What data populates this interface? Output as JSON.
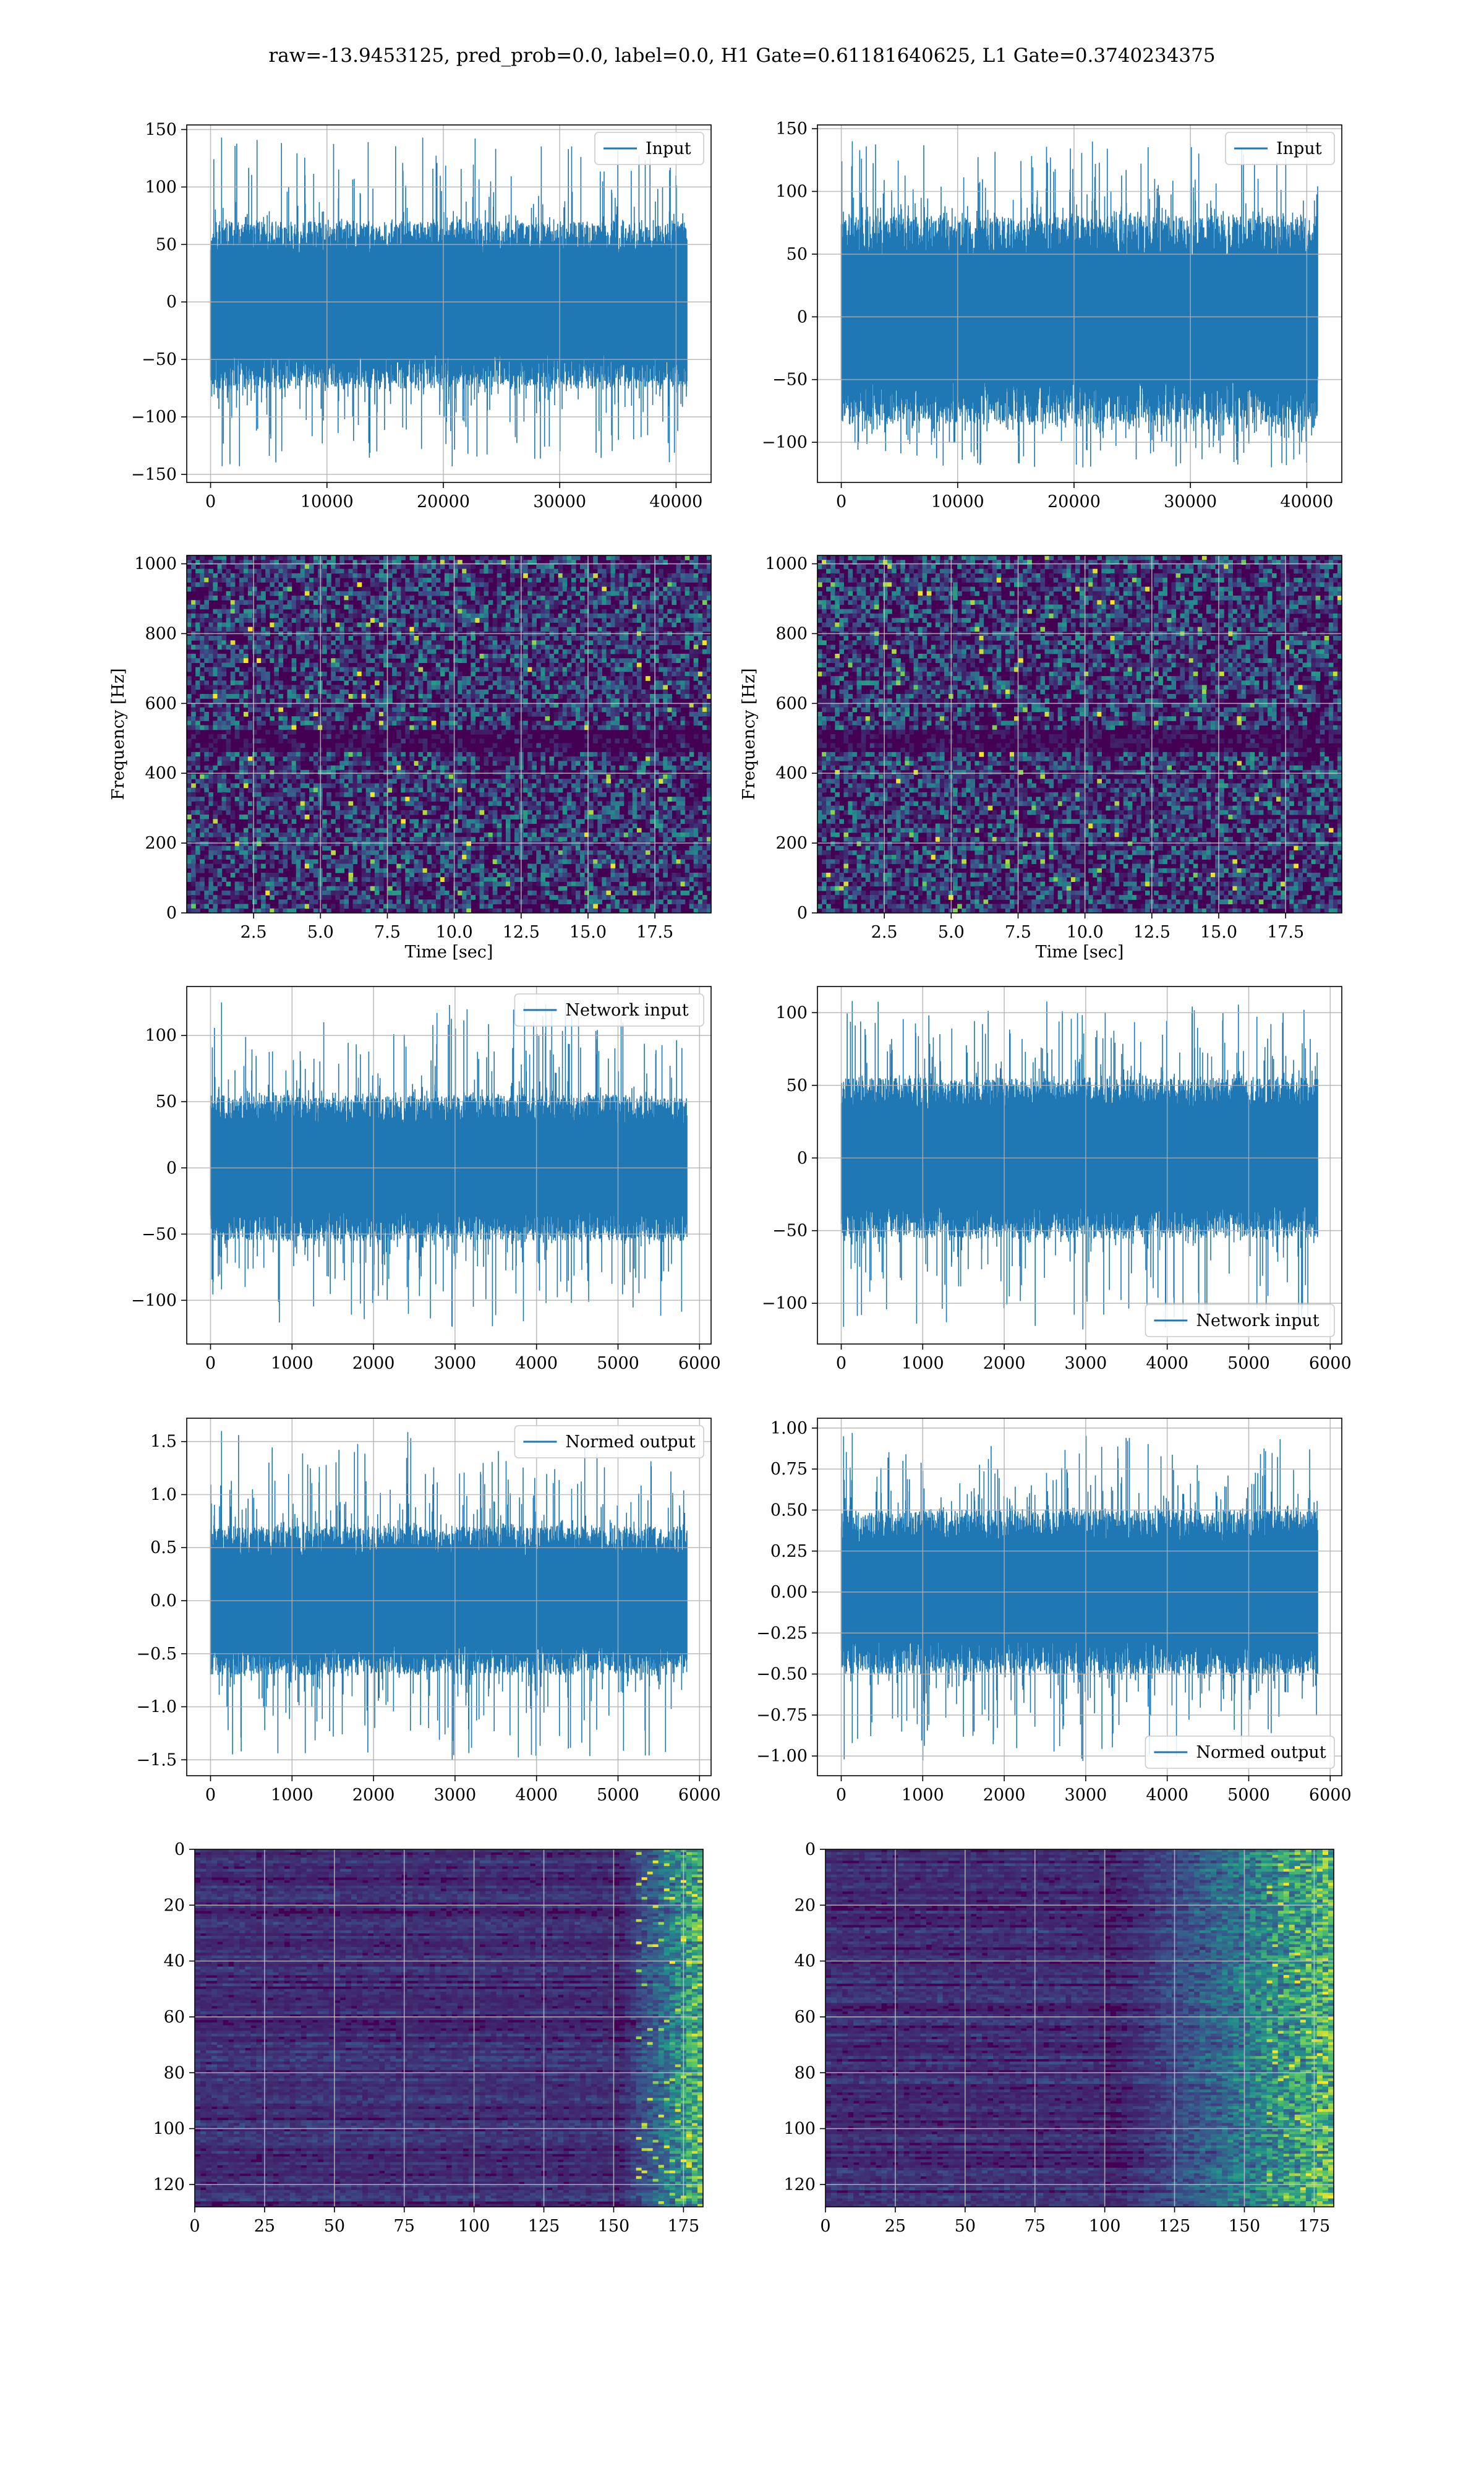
{
  "suptitle": "raw=-13.9453125, pred_prob=0.0, label=0.0, H1 Gate=0.61181640625, L1 Gate=0.3740234375",
  "colors": {
    "line": "#1f77b4",
    "grid": "#b0b0b0",
    "viridis_dark": "#440154",
    "viridis_bright": "#fde725"
  },
  "chart_data": [
    {
      "id": "input-h1",
      "type": "line",
      "series": [
        {
          "name": "Input",
          "n_points": 40960,
          "amplitude_typical": [
            -75,
            70
          ],
          "amplitude_extremes": [
            -143,
            143
          ]
        }
      ],
      "xlim": [
        -2048,
        43008
      ],
      "ylim": [
        -157,
        154
      ],
      "xticks": [
        0,
        10000,
        20000,
        30000,
        40000
      ],
      "yticks": [
        -150,
        -100,
        -50,
        0,
        50,
        100,
        150
      ],
      "grid": true,
      "legend": "upper right"
    },
    {
      "id": "input-l1",
      "type": "line",
      "series": [
        {
          "name": "Input",
          "n_points": 40960,
          "amplitude_typical": [
            -85,
            80
          ],
          "amplitude_extremes": [
            -120,
            140
          ]
        }
      ],
      "xlim": [
        -2048,
        43008
      ],
      "ylim": [
        -132,
        153
      ],
      "xticks": [
        0,
        10000,
        20000,
        30000,
        40000
      ],
      "yticks": [
        -100,
        -50,
        0,
        50,
        100,
        150
      ],
      "grid": true,
      "legend": "upper right"
    },
    {
      "id": "spectrogram-h1",
      "type": "heatmap",
      "colormap": "viridis",
      "xlim": [
        0,
        19.6
      ],
      "ylim": [
        0,
        1024
      ],
      "xticks": [
        2.5,
        5.0,
        7.5,
        10.0,
        12.5,
        15.0,
        17.5
      ],
      "yticks": [
        0,
        200,
        400,
        600,
        800,
        1000
      ],
      "xlabel": "Time [sec]",
      "ylabel": "Frequency [Hz]",
      "grid": true,
      "features": {
        "dark_band_hz": [
          460,
          520
        ]
      }
    },
    {
      "id": "spectrogram-l1",
      "type": "heatmap",
      "colormap": "viridis",
      "xlim": [
        0,
        19.6
      ],
      "ylim": [
        0,
        1024
      ],
      "xticks": [
        2.5,
        5.0,
        7.5,
        10.0,
        12.5,
        15.0,
        17.5
      ],
      "yticks": [
        0,
        200,
        400,
        600,
        800,
        1000
      ],
      "xlabel": "Time [sec]",
      "ylabel": "Frequency [Hz]",
      "grid": true,
      "features": {
        "dark_band_hz": [
          465,
          520
        ]
      }
    },
    {
      "id": "network-input-h1",
      "type": "line",
      "series": [
        {
          "name": "Network input",
          "n_points": 5850,
          "amplitude_typical": [
            -55,
            55
          ],
          "amplitude_extremes": [
            -120,
            125
          ]
        }
      ],
      "xlim": [
        -292,
        6142
      ],
      "ylim": [
        -133,
        137
      ],
      "xticks": [
        0,
        1000,
        2000,
        3000,
        4000,
        5000,
        6000
      ],
      "yticks": [
        -100,
        -50,
        0,
        50,
        100
      ],
      "grid": true,
      "legend": "upper right"
    },
    {
      "id": "network-input-l1",
      "type": "line",
      "series": [
        {
          "name": "Network input",
          "n_points": 5850,
          "amplitude_typical": [
            -55,
            55
          ],
          "amplitude_extremes": [
            -118,
            108
          ]
        }
      ],
      "xlim": [
        -292,
        6142
      ],
      "ylim": [
        -128,
        118
      ],
      "xticks": [
        0,
        1000,
        2000,
        3000,
        4000,
        5000,
        6000
      ],
      "yticks": [
        -100,
        -50,
        0,
        50,
        100
      ],
      "grid": true,
      "legend": "lower right"
    },
    {
      "id": "normed-output-h1",
      "type": "line",
      "series": [
        {
          "name": "Normed output",
          "n_points": 5850,
          "amplitude_typical": [
            -0.7,
            0.7
          ],
          "amplitude_extremes": [
            -1.5,
            1.6
          ]
        }
      ],
      "xlim": [
        -292,
        6142
      ],
      "ylim": [
        -1.65,
        1.72
      ],
      "xticks": [
        0,
        1000,
        2000,
        3000,
        4000,
        5000,
        6000
      ],
      "yticks": [
        -1.5,
        -1.0,
        -0.5,
        0.0,
        0.5,
        1.0,
        1.5
      ],
      "grid": true,
      "legend": "upper right"
    },
    {
      "id": "normed-output-l1",
      "type": "line",
      "series": [
        {
          "name": "Normed output",
          "n_points": 5850,
          "amplitude_typical": [
            -0.5,
            0.5
          ],
          "amplitude_extremes": [
            -1.03,
            0.97
          ]
        }
      ],
      "xlim": [
        -292,
        6142
      ],
      "ylim": [
        -1.12,
        1.06
      ],
      "xticks": [
        0,
        1000,
        2000,
        3000,
        4000,
        5000,
        6000
      ],
      "yticks": [
        -1.0,
        -0.75,
        -0.5,
        -0.25,
        0.0,
        0.25,
        0.5,
        0.75,
        1.0
      ],
      "grid": true,
      "legend": "lower right"
    },
    {
      "id": "activation-map-h1",
      "type": "heatmap",
      "colormap": "viridis",
      "xlim": [
        0,
        182
      ],
      "ylim": [
        128,
        0
      ],
      "xticks": [
        0,
        25,
        50,
        75,
        100,
        125,
        150,
        175
      ],
      "yticks": [
        0,
        20,
        40,
        60,
        80,
        100,
        120
      ],
      "grid": true,
      "features": {
        "bright_region_x": [
          150,
          182
        ]
      }
    },
    {
      "id": "activation-map-l1",
      "type": "heatmap",
      "colormap": "viridis",
      "xlim": [
        0,
        182
      ],
      "ylim": [
        128,
        0
      ],
      "xticks": [
        0,
        25,
        50,
        75,
        100,
        125,
        150,
        175
      ],
      "yticks": [
        0,
        20,
        40,
        60,
        80,
        100,
        120
      ],
      "grid": true,
      "features": {
        "bright_region_x": [
          100,
          182
        ]
      }
    }
  ]
}
